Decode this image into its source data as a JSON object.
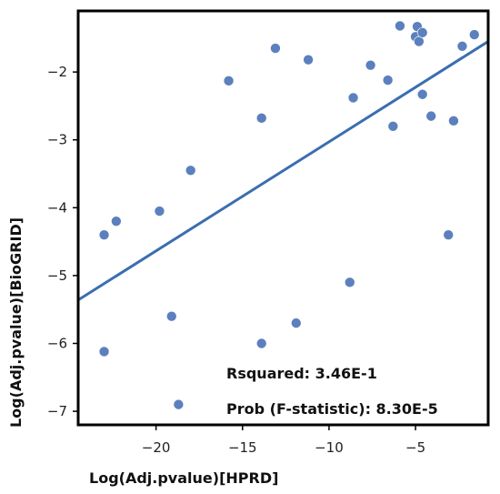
{
  "chart_data": {
    "type": "scatter",
    "xlabel": "Log(Adj.pvalue)[HPRD]",
    "ylabel": "Log(Adj.pvalue)[BioGRID]",
    "xlim": [
      -24.5,
      -0.8
    ],
    "ylim": [
      -7.2,
      -1.1
    ],
    "x_ticks": [
      -20,
      -15,
      -10,
      -5
    ],
    "y_ticks": [
      -7,
      -6,
      -5,
      -4,
      -3,
      -2
    ],
    "x_tick_labels": [
      "−20",
      "−15",
      "−10",
      "−5"
    ],
    "y_tick_labels": [
      "−7",
      "−6",
      "−5",
      "−4",
      "−3",
      "−2"
    ],
    "grid": false,
    "point_color": "#5b80bd",
    "line_color": "#3a6eb0",
    "points": [
      {
        "x": -23.0,
        "y": -4.4
      },
      {
        "x": -23.0,
        "y": -6.12
      },
      {
        "x": -22.3,
        "y": -4.2
      },
      {
        "x": -19.8,
        "y": -4.05
      },
      {
        "x": -19.1,
        "y": -5.6
      },
      {
        "x": -18.7,
        "y": -6.9
      },
      {
        "x": -18.0,
        "y": -3.45
      },
      {
        "x": -15.8,
        "y": -2.13
      },
      {
        "x": -13.9,
        "y": -2.68
      },
      {
        "x": -13.9,
        "y": -6.0
      },
      {
        "x": -13.1,
        "y": -1.65
      },
      {
        "x": -11.9,
        "y": -5.7
      },
      {
        "x": -11.2,
        "y": -1.82
      },
      {
        "x": -8.8,
        "y": -5.1
      },
      {
        "x": -8.6,
        "y": -2.38
      },
      {
        "x": -7.6,
        "y": -1.9
      },
      {
        "x": -6.6,
        "y": -2.12
      },
      {
        "x": -6.3,
        "y": -2.8
      },
      {
        "x": -5.9,
        "y": -1.32
      },
      {
        "x": -5.0,
        "y": -1.48
      },
      {
        "x": -4.9,
        "y": -1.33
      },
      {
        "x": -4.8,
        "y": -1.55
      },
      {
        "x": -4.6,
        "y": -1.42
      },
      {
        "x": -4.6,
        "y": -2.33
      },
      {
        "x": -4.1,
        "y": -2.65
      },
      {
        "x": -3.1,
        "y": -4.4
      },
      {
        "x": -2.8,
        "y": -2.72
      },
      {
        "x": -2.3,
        "y": -1.62
      },
      {
        "x": -1.6,
        "y": -1.45
      }
    ],
    "regression_line": {
      "x": [
        -24.5,
        -0.8
      ],
      "y": [
        -5.36,
        -1.55
      ]
    },
    "annotations": [
      {
        "text": "Rsquared: 3.46E-1"
      },
      {
        "text": "Prob (F-statistic): 8.30E-5"
      }
    ]
  }
}
